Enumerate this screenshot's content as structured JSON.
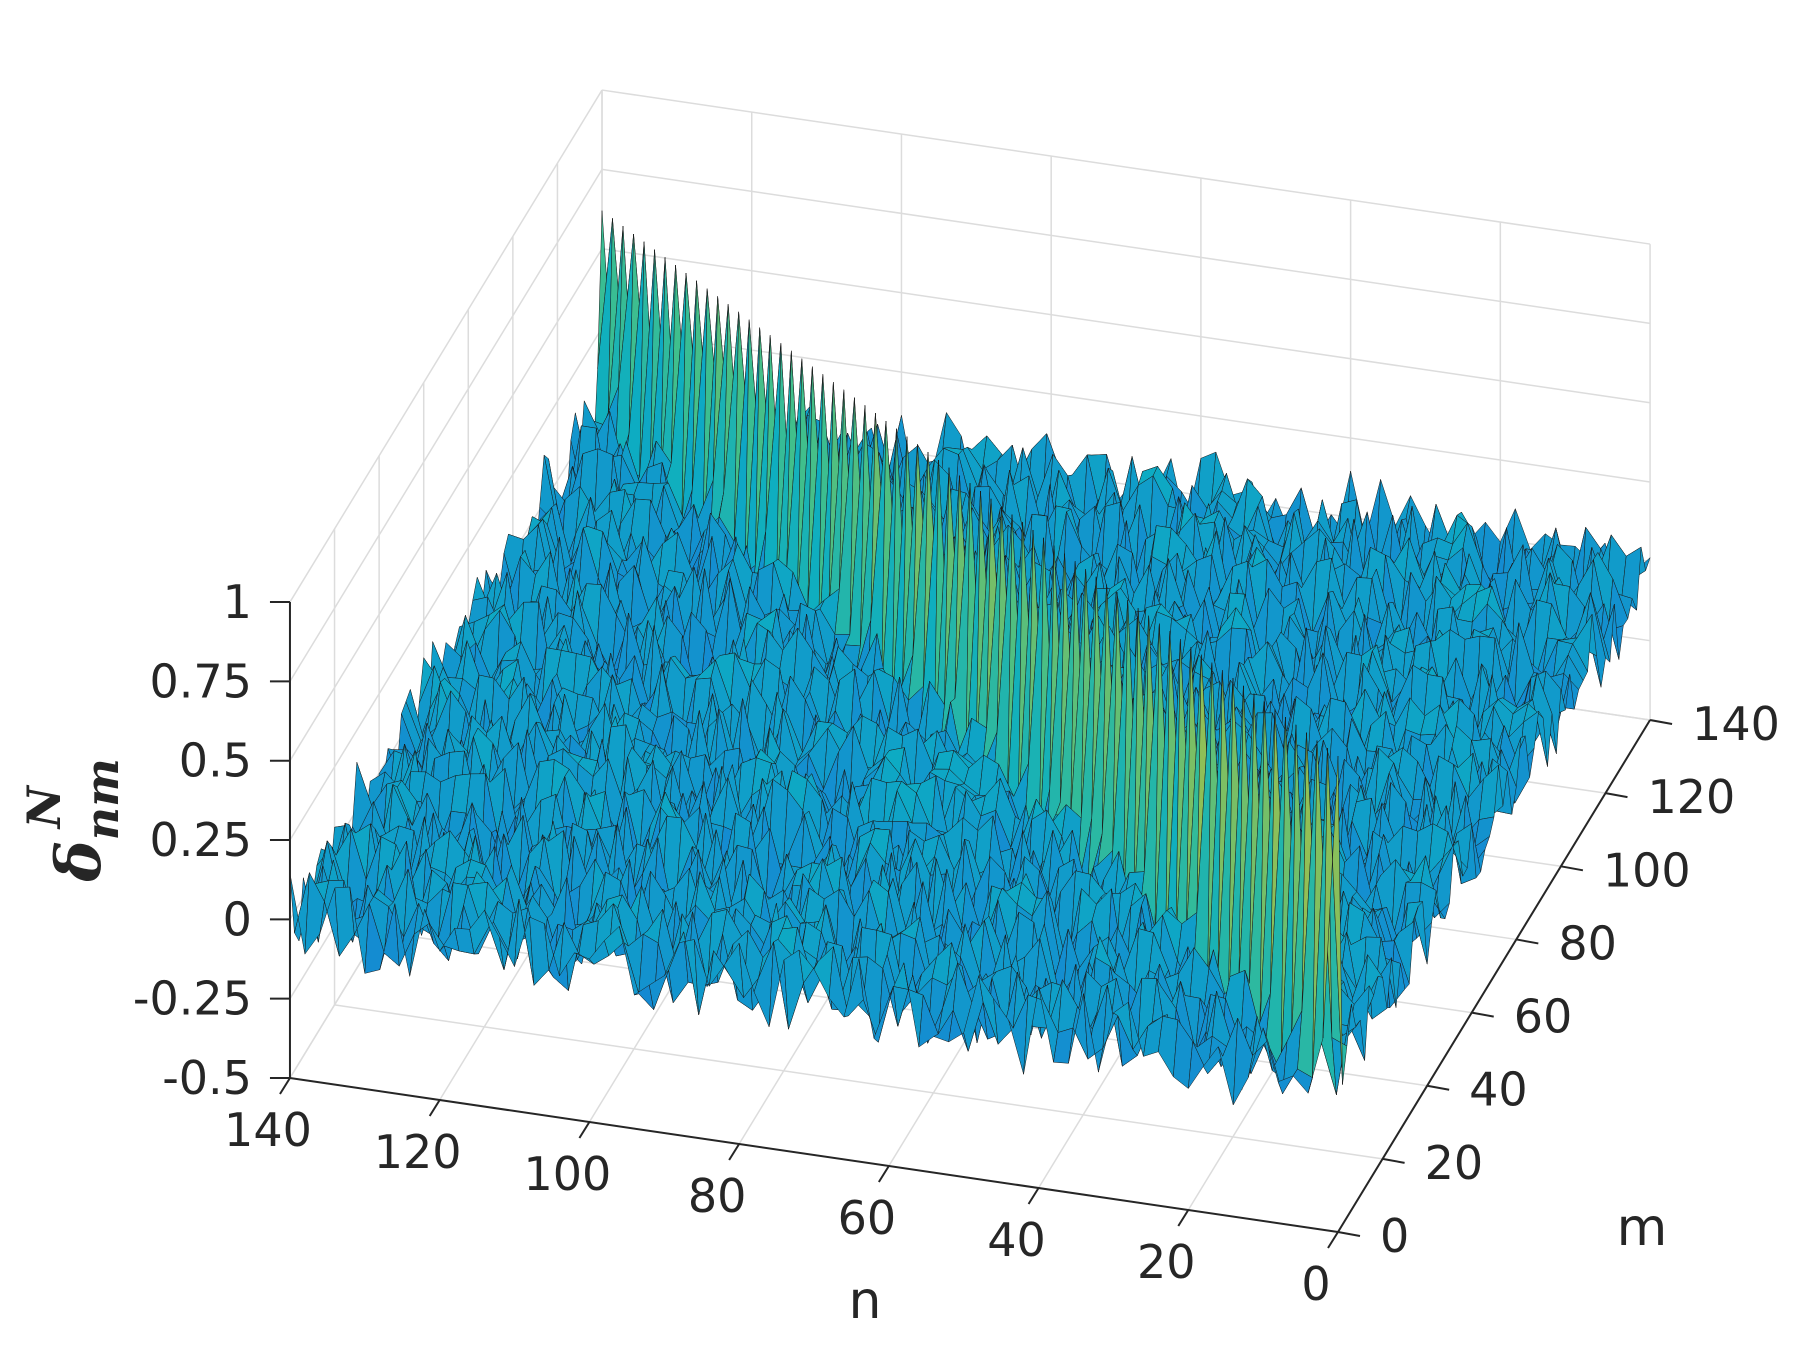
{
  "chart_data": {
    "type": "surface",
    "title": "",
    "xlabel": "n",
    "ylabel": "m",
    "zlabel": {
      "symbol": "δ",
      "sub": "nm",
      "sup": "N"
    },
    "xlim": [
      0,
      140
    ],
    "ylim": [
      0,
      140
    ],
    "zlim": [
      -0.5,
      1
    ],
    "x_ticks": [
      0,
      20,
      40,
      60,
      80,
      100,
      120,
      140
    ],
    "y_ticks": [
      0,
      20,
      40,
      60,
      80,
      100,
      120,
      140
    ],
    "z_ticks": [
      -0.5,
      -0.25,
      0,
      0.25,
      0.5,
      0.75,
      1
    ],
    "x_tick_labels": [
      "0",
      "20",
      "40",
      "60",
      "80",
      "100",
      "120",
      "140"
    ],
    "y_tick_labels": [
      "0",
      "20",
      "40",
      "60",
      "80",
      "100",
      "120",
      "140"
    ],
    "z_tick_labels": [
      "-0.5",
      "-0.25",
      "0",
      "0.25",
      "0.5",
      "0.75",
      "1"
    ],
    "grid": true,
    "colormap": "parula",
    "surface": {
      "description_values": {
        "diagonal_peak_at_n_eq_m_start": 1.0,
        "diagonal_peak_at_n_eq_m_end": 0.6,
        "background_mean": 0.0,
        "background_noise_amplitude": 0.15
      }
    }
  }
}
